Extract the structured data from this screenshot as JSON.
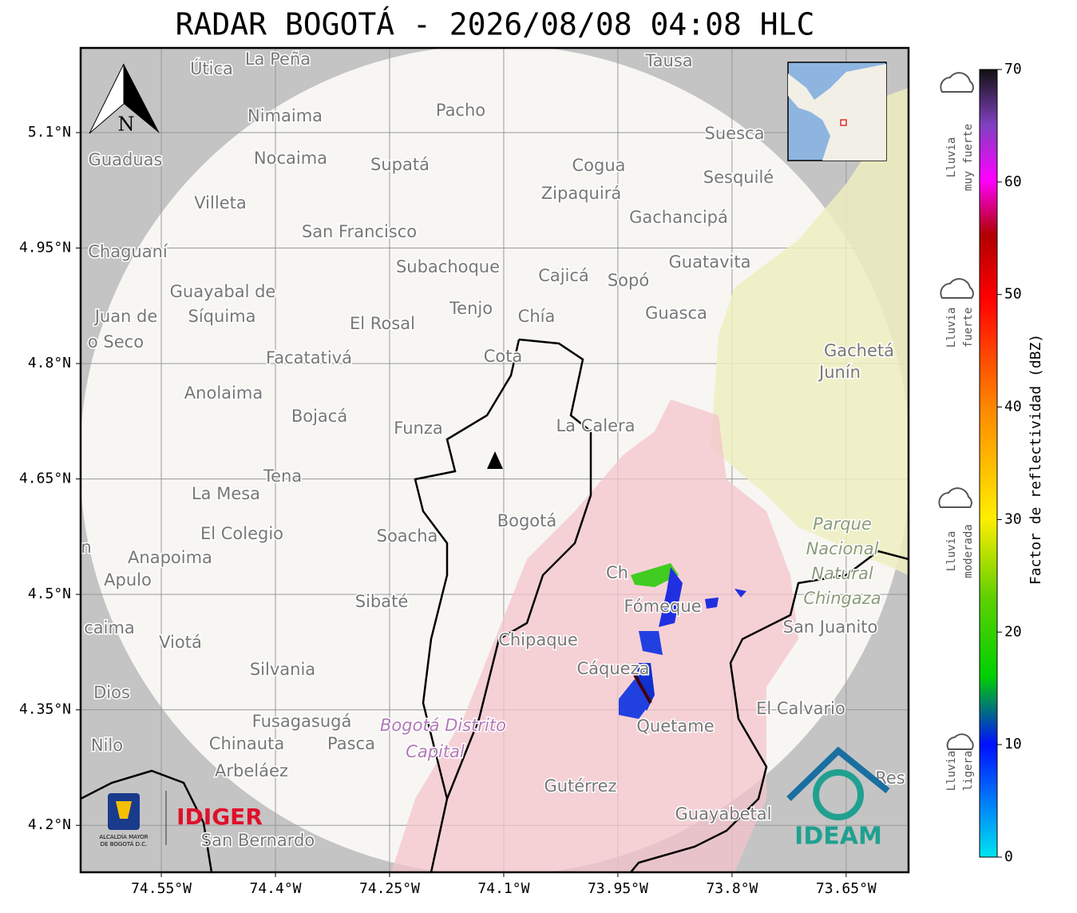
{
  "title": "RADAR BOGOTÁ - 2026/08/08 04:08 HLC",
  "map": {
    "lonlim": [
      -74.656,
      -73.568
    ],
    "latlim": [
      4.139,
      5.21
    ],
    "lon_ticks": [
      {
        "value": -74.55,
        "label": "74.55°W"
      },
      {
        "value": -74.4,
        "label": "74.4°W"
      },
      {
        "value": -74.25,
        "label": "74.25°W"
      },
      {
        "value": -74.1,
        "label": "74.1°W"
      },
      {
        "value": -73.95,
        "label": "73.95°W"
      },
      {
        "value": -73.8,
        "label": "73.8°W"
      },
      {
        "value": -73.65,
        "label": "73.65°W"
      }
    ],
    "lat_ticks": [
      {
        "value": 5.1,
        "label": "5.1°N"
      },
      {
        "value": 4.95,
        "label": "4.95°N"
      },
      {
        "value": 4.8,
        "label": "4.8°N"
      },
      {
        "value": 4.65,
        "label": "4.65°N"
      },
      {
        "value": 4.5,
        "label": "4.5°N"
      },
      {
        "value": 4.35,
        "label": "4.35°N"
      },
      {
        "value": 4.2,
        "label": "4.2°N"
      }
    ],
    "places": [
      "La Peña",
      "Útica",
      "Tausa",
      "Pacho",
      "Nimaima",
      "Guaduas",
      "Nocaima",
      "Supatá",
      "Cogua",
      "Suesca",
      "Sesquilé",
      "Villeta",
      "Zipaquirá",
      "Gachancipá",
      "San Francisco",
      "Chaguaní",
      "Subachoque",
      "Cajicá",
      "Sopó",
      "Guatavita",
      "Guayabal de",
      "Síquima",
      "Tenjo",
      "Chía",
      "Guasca",
      "Juan de",
      "El Rosal",
      "o Seco",
      "Facatativá",
      "Cota",
      "Gachetá",
      "Junín",
      "Anolaima",
      "Bojacá",
      "Funza",
      "La Calera",
      "Tena",
      "La Mesa",
      "Bogotá",
      "Soacha",
      "El Colegio",
      "Parque",
      "Nacional",
      "Natural",
      "Chingaza",
      "n",
      "Anapoima",
      "Apulo",
      "Ch",
      "Fómeque",
      "Sibaté",
      "San Juanito",
      "caima",
      "Viotá",
      "Chipaque",
      "Cáqueza",
      "Silvania",
      "Dios",
      "El Calvario",
      "Fusagasugá",
      "Bogotá Distrito",
      "Quetame",
      "Nilo",
      "Chinauta",
      "Pasca",
      "Capital",
      "Arbeláez",
      "Gutérrez",
      "Res",
      "Guayabetal",
      "San Bernardo"
    ],
    "north": "N"
  },
  "colorbar": {
    "label": "Factor de reflectividad (dBZ)",
    "lim": [
      0,
      70
    ],
    "ticks": [
      0,
      10,
      20,
      30,
      40,
      50,
      60,
      70
    ]
  },
  "legend": [
    [
      "Lluvia",
      "muy fuerte"
    ],
    [
      "Lluvia",
      "fuerte"
    ],
    [
      "Lluvia",
      "moderada"
    ],
    [
      "Lluvia",
      "ligera"
    ]
  ],
  "logos": {
    "alcaldia": "ALCALDÍA MAYOR",
    "alcaldia2": "DE BOGOTÁ D.C.",
    "idiger": "IDIGER",
    "ideam": "IDEAM"
  }
}
